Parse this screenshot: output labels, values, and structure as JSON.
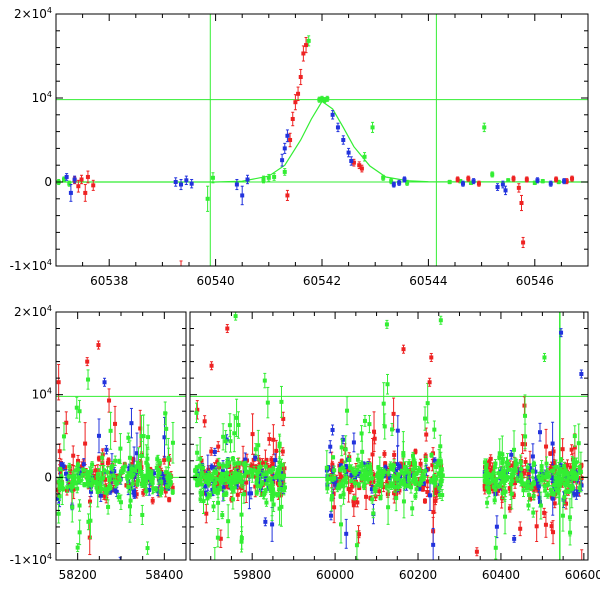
{
  "colors": {
    "green": "#33ee33",
    "red": "#ee2222",
    "blue": "#2233dd",
    "axis": "#000000"
  },
  "chart_data": [
    {
      "type": "scatter",
      "panel": "top",
      "title": "",
      "xlabel": "",
      "ylabel": "",
      "xlim": [
        60537.0,
        60547.0
      ],
      "ylim": [
        -10000,
        20000
      ],
      "x_ticks": [
        60538,
        60540,
        60542,
        60544,
        60546
      ],
      "x_tick_labels": [
        "60538",
        "60540",
        "60542",
        "60544",
        "60546"
      ],
      "y_ticks": [
        -10000,
        0,
        10000,
        20000
      ],
      "y_tick_labels": [
        {
          "base": "-1×10",
          "exp": "4"
        },
        {
          "base": "0",
          "exp": ""
        },
        {
          "base": "10",
          "exp": "4"
        },
        {
          "base": "2×10",
          "exp": "4"
        }
      ],
      "reference_lines": {
        "horizontal": [
          0,
          9800
        ],
        "vertical": [
          60539.9,
          60544.15
        ]
      },
      "model_curve": {
        "color": "green",
        "x": [
          60537.0,
          60540.0,
          60540.5,
          60541.0,
          60541.3,
          60541.6,
          60541.8,
          60542.0,
          60542.2,
          60542.4,
          60542.6,
          60542.9,
          60543.2,
          60543.6,
          60544.0,
          60547.0
        ],
        "y": [
          0,
          0,
          100,
          700,
          2000,
          5000,
          7500,
          9600,
          8700,
          6500,
          4200,
          1900,
          600,
          150,
          30,
          0
        ]
      },
      "series": [
        {
          "color": "green",
          "points": [
            [
              60537.05,
              0,
              300
            ],
            [
              60537.15,
              300,
              300
            ],
            [
              60537.25,
              -200,
              300
            ],
            [
              60539.85,
              -2000,
              1500
            ],
            [
              60539.95,
              500,
              600
            ],
            [
              60540.9,
              300,
              400
            ],
            [
              60541.0,
              500,
              400
            ],
            [
              60541.1,
              600,
              400
            ],
            [
              60541.3,
              1200,
              400
            ],
            [
              60541.95,
              9800,
              300
            ],
            [
              60542.0,
              9900,
              300
            ],
            [
              60542.05,
              9750,
              300
            ],
            [
              60542.1,
              9900,
              300
            ],
            [
              60542.8,
              3000,
              500
            ],
            [
              60542.95,
              6500,
              600
            ],
            [
              60541.75,
              16800,
              600
            ],
            [
              60543.15,
              500,
              300
            ],
            [
              60543.3,
              100,
              300
            ],
            [
              60543.6,
              -100,
              300
            ],
            [
              60544.4,
              0,
              200
            ],
            [
              60544.6,
              100,
              200
            ],
            [
              60544.8,
              -100,
              200
            ],
            [
              60545.05,
              6500,
              500
            ],
            [
              60545.2,
              900,
              300
            ],
            [
              60545.5,
              200,
              200
            ],
            [
              60546.0,
              -100,
              200
            ],
            [
              60546.15,
              100,
              200
            ],
            [
              60546.45,
              0,
              200
            ]
          ]
        },
        {
          "color": "red",
          "points": [
            [
              60537.35,
              200,
              400
            ],
            [
              60537.42,
              -500,
              700
            ],
            [
              60537.48,
              300,
              500
            ],
            [
              60537.55,
              -1300,
              1000
            ],
            [
              60537.6,
              600,
              700
            ],
            [
              60537.7,
              -400,
              600
            ],
            [
              60539.35,
              -10300,
              900
            ],
            [
              60541.35,
              -1600,
              600
            ],
            [
              60541.4,
              5000,
              800
            ],
            [
              60541.45,
              7500,
              800
            ],
            [
              60541.5,
              9500,
              900
            ],
            [
              60541.55,
              10500,
              800
            ],
            [
              60541.6,
              12500,
              900
            ],
            [
              60541.65,
              15300,
              900
            ],
            [
              60541.7,
              16300,
              900
            ],
            [
              60542.6,
              2300,
              400
            ],
            [
              60542.7,
              2000,
              400
            ],
            [
              60542.75,
              1600,
              400
            ],
            [
              60544.55,
              300,
              300
            ],
            [
              60544.75,
              400,
              300
            ],
            [
              60544.95,
              -200,
              300
            ],
            [
              60545.6,
              400,
              300
            ],
            [
              60545.7,
              -700,
              500
            ],
            [
              60545.75,
              -2500,
              900
            ],
            [
              60545.78,
              -7200,
              600
            ],
            [
              60545.85,
              300,
              300
            ],
            [
              60546.4,
              300,
              300
            ],
            [
              60546.6,
              100,
              300
            ],
            [
              60546.7,
              400,
              300
            ]
          ]
        },
        {
          "color": "blue",
          "points": [
            [
              60537.2,
              600,
              400
            ],
            [
              60537.28,
              -1300,
              1000
            ],
            [
              60537.35,
              300,
              400
            ],
            [
              60539.25,
              0,
              500
            ],
            [
              60539.35,
              -300,
              600
            ],
            [
              60539.45,
              200,
              500
            ],
            [
              60539.55,
              -200,
              500
            ],
            [
              60540.4,
              -300,
              600
            ],
            [
              60540.5,
              -1600,
              1100
            ],
            [
              60540.6,
              300,
              500
            ],
            [
              60541.25,
              2600,
              700
            ],
            [
              60541.3,
              4000,
              600
            ],
            [
              60541.35,
              5500,
              700
            ],
            [
              60542.2,
              8000,
              500
            ],
            [
              60542.3,
              6500,
              500
            ],
            [
              60542.4,
              5000,
              500
            ],
            [
              60542.5,
              3500,
              500
            ],
            [
              60542.55,
              2500,
              500
            ],
            [
              60543.35,
              -300,
              300
            ],
            [
              60543.45,
              -100,
              300
            ],
            [
              60543.55,
              300,
              300
            ],
            [
              60544.65,
              -200,
              300
            ],
            [
              60544.85,
              100,
              300
            ],
            [
              60545.3,
              -600,
              400
            ],
            [
              60545.4,
              -300,
              400
            ],
            [
              60545.45,
              -1000,
              500
            ],
            [
              60546.05,
              200,
              300
            ],
            [
              60546.3,
              -200,
              300
            ],
            [
              60546.55,
              100,
              300
            ]
          ]
        }
      ]
    },
    {
      "type": "scatter",
      "panel": "bottom",
      "title": "",
      "xlabel": "",
      "ylabel": "",
      "broken_x_axis": true,
      "segments": [
        {
          "xlim": [
            58150,
            58450
          ],
          "x_ticks": [
            58200,
            58400
          ],
          "x_tick_labels": [
            "58200",
            "58400"
          ],
          "data_range": [
            58155,
            58420
          ]
        },
        {
          "xlim": [
            59650,
            60610
          ],
          "x_ticks": [
            59800,
            60000,
            60200,
            60400,
            60600
          ],
          "x_tick_labels": [
            "59800",
            "60000",
            "60200",
            "60400",
            "60600"
          ],
          "data_ranges": [
            [
              59660,
              59880
            ],
            [
              59980,
              60260
            ],
            [
              60360,
              60595
            ]
          ]
        }
      ],
      "ylim": [
        -10000,
        20000
      ],
      "y_ticks": [
        -10000,
        0,
        10000,
        20000
      ],
      "y_tick_labels": [
        {
          "base": "-1×10",
          "exp": "4"
        },
        {
          "base": "0",
          "exp": ""
        },
        {
          "base": "10",
          "exp": "4"
        },
        {
          "base": "2×10",
          "exp": "4"
        }
      ],
      "reference_lines": {
        "horizontal": [
          0,
          9800
        ],
        "vertical": [
          60542
        ]
      },
      "series": [
        {
          "color": "green",
          "dense_band": {
            "points_per_range": 180,
            "core_scatter": 1500,
            "outlier_scatter": 6500
          }
        },
        {
          "color": "red",
          "dense_band": {
            "points_per_range": 110,
            "core_scatter": 1800,
            "outlier_scatter": 7000
          }
        },
        {
          "color": "blue",
          "dense_band": {
            "points_per_range": 55,
            "core_scatter": 1600,
            "outlier_scatter": 6000
          }
        }
      ],
      "notable_points": [
        {
          "color": "red",
          "x": 58248,
          "y": 16000
        },
        {
          "color": "red",
          "x": 58222,
          "y": 14000
        },
        {
          "color": "blue",
          "x": 58262,
          "y": 11500
        },
        {
          "color": "red",
          "x": 59740,
          "y": 18000
        },
        {
          "color": "green",
          "x": 59760,
          "y": 19500
        },
        {
          "color": "red",
          "x": 59702,
          "y": 13500
        },
        {
          "color": "green",
          "x": 60125,
          "y": 18500
        },
        {
          "color": "red",
          "x": 60165,
          "y": 15500
        },
        {
          "color": "green",
          "x": 60255,
          "y": 19000
        },
        {
          "color": "red",
          "x": 60232,
          "y": 14500
        },
        {
          "color": "red",
          "x": 60228,
          "y": 11500
        },
        {
          "color": "green",
          "x": 60505,
          "y": 14500
        },
        {
          "color": "blue",
          "x": 60545,
          "y": 17500
        },
        {
          "color": "blue",
          "x": 60594,
          "y": 12500
        },
        {
          "color": "red",
          "x": 60342,
          "y": -9000
        },
        {
          "color": "green",
          "x": 58200,
          "y": -8500
        }
      ]
    }
  ]
}
